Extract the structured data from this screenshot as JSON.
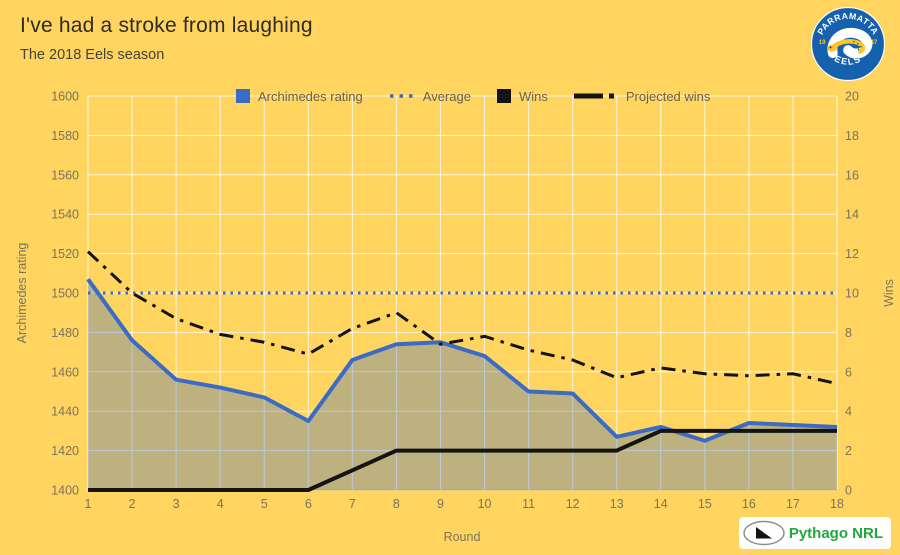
{
  "header": {
    "title": "I've had a stroke from laughing",
    "subtitle": "The 2018 Eels season"
  },
  "legend": [
    {
      "label": "Archimedes rating",
      "marker": "square",
      "color": "#3A6BC6"
    },
    {
      "label": "Average",
      "marker": "dotted",
      "color": "#3A6BC6"
    },
    {
      "label": "Wins",
      "marker": "square",
      "color": "#141414"
    },
    {
      "label": "Projected wins",
      "marker": "dashdot",
      "color": "#141414"
    }
  ],
  "chart_data": {
    "type": "line",
    "x": [
      1,
      2,
      3,
      4,
      5,
      6,
      7,
      8,
      9,
      10,
      11,
      12,
      13,
      14,
      15,
      16,
      17,
      18
    ],
    "xlabel": "Round",
    "ylabel_left": "Archimedes rating",
    "ylabel_right": "Wins",
    "ylim_left": [
      1400,
      1600
    ],
    "ylim_right": [
      0,
      20
    ],
    "yticks_left": [
      1400,
      1420,
      1440,
      1460,
      1480,
      1500,
      1520,
      1540,
      1560,
      1580,
      1600
    ],
    "yticks_right": [
      0,
      2,
      4,
      6,
      8,
      10,
      12,
      14,
      16,
      18,
      20
    ],
    "grid": true,
    "legend_position": "top",
    "series": [
      {
        "name": "Archimedes rating",
        "axis": "left",
        "style": "solid",
        "color": "#3A6BC6",
        "width": 4,
        "fill": "rgba(58,107,198,0.33)",
        "values": [
          1507,
          1476,
          1456,
          1452,
          1447,
          1435,
          1466,
          1474,
          1475,
          1468,
          1450,
          1449,
          1427,
          1432,
          1425,
          1434,
          1433,
          1432
        ]
      },
      {
        "name": "Average",
        "axis": "left",
        "style": "dotted",
        "color": "#3A6BC6",
        "width": 3,
        "constant": 1500
      },
      {
        "name": "Wins",
        "axis": "right",
        "style": "solid",
        "color": "#141414",
        "width": 4,
        "values": [
          0,
          0,
          0,
          0,
          0,
          0,
          1,
          2,
          2,
          2,
          2,
          2,
          2,
          3,
          3,
          3,
          3,
          3
        ]
      },
      {
        "name": "Projected wins",
        "axis": "right",
        "style": "dashdot",
        "color": "#141414",
        "width": 3,
        "values": [
          12.1,
          10,
          8.7,
          7.9,
          7.5,
          6.9,
          8.2,
          9,
          7.4,
          7.8,
          7.1,
          6.6,
          5.7,
          6.2,
          5.9,
          5.8,
          5.9,
          5.4
        ]
      }
    ]
  },
  "logo": {
    "team": "Parramatta Eels",
    "arc_top": "PARRAMATTA",
    "arc_bottom": "EELS",
    "year_left": "19",
    "year_right": "47"
  },
  "branding": {
    "text": "Pythago NRL"
  },
  "colors": {
    "background": "#FFD45F",
    "grid": "rgba(255,255,255,0.8)",
    "tick_text": "#7A7460",
    "title_text": "#2E2C27",
    "accent_blue": "#3A6BC6",
    "series_black": "#141414",
    "brand_green": "#1FA83C",
    "logo_blue": "#1561AE",
    "logo_yellow": "#FFC425"
  }
}
